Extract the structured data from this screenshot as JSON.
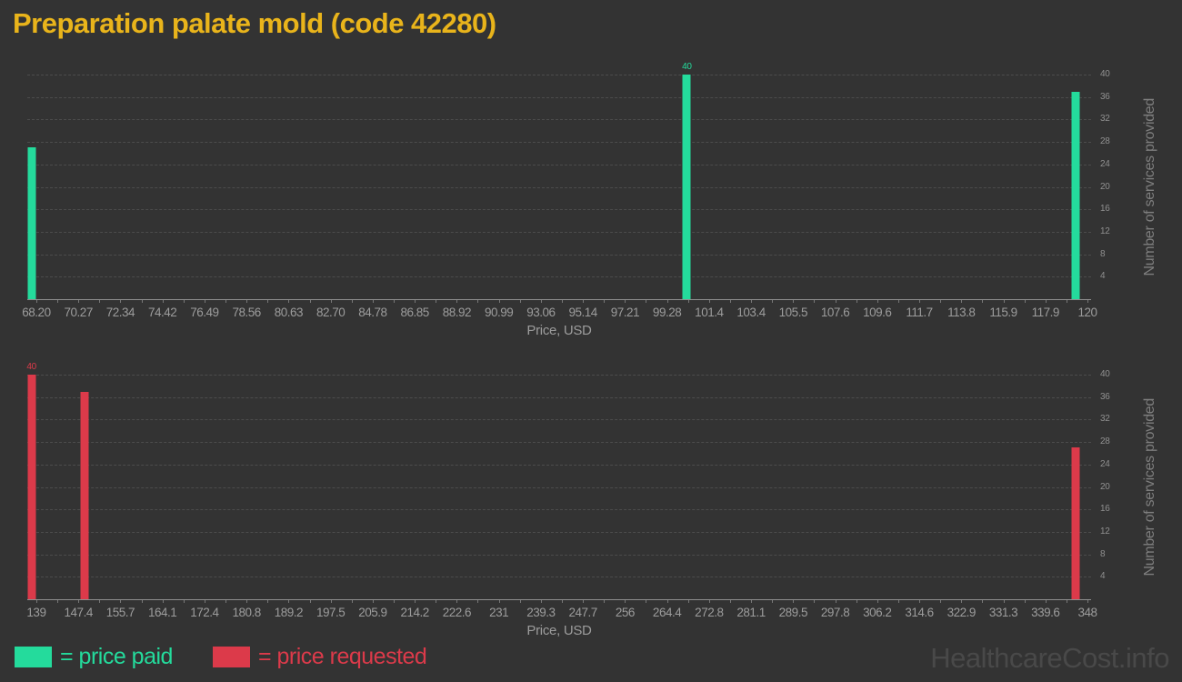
{
  "title": "Preparation palate mold (code 42280)",
  "watermark": "HealthcareCost.info",
  "legend": {
    "paid_label": "= price paid",
    "requested_label": "= price requested"
  },
  "colors": {
    "background": "#333333",
    "title": "#e9b41b",
    "paid": "#24db9c",
    "requested": "#dc3a4a",
    "grid": "#4c4c4c",
    "axis_line": "#8f8f8f",
    "x_tick_label": "#9c9c9c",
    "y_tick_label": "#909090",
    "y_title": "#7e7e7e",
    "watermark": "#494949"
  },
  "chart_data": [
    {
      "type": "bar",
      "series": "price paid",
      "title": "Preparation palate mold (code 42280)",
      "xlabel": "Price, USD",
      "ylabel": "Number of services provided",
      "ylim": [
        0,
        40
      ],
      "grid": "horizontal-dashed",
      "legend_position": "bottom-left",
      "y_ticks": [
        40,
        36,
        32,
        28,
        24,
        20,
        16,
        12,
        8,
        4
      ],
      "x_range": [
        68.2,
        120
      ],
      "x_tick_labels": [
        "68.20",
        "70.27",
        "72.34",
        "74.42",
        "76.49",
        "78.56",
        "80.63",
        "82.70",
        "84.78",
        "86.85",
        "88.92",
        "90.99",
        "93.06",
        "95.14",
        "97.21",
        "99.28",
        "101.4",
        "103.4",
        "105.5",
        "107.6",
        "109.6",
        "111.7",
        "113.8",
        "115.9",
        "117.9",
        "120"
      ],
      "tick_span": [
        0.0085,
        0.9966
      ],
      "bars": [
        {
          "x": 68.2,
          "count": 27,
          "frac": 0.004
        },
        {
          "x": 100.3,
          "count": 40,
          "frac": 0.62,
          "label": "40"
        },
        {
          "x": 119.4,
          "count": 37,
          "frac": 0.9855
        }
      ],
      "color": "#24db9c"
    },
    {
      "type": "bar",
      "series": "price requested",
      "title": "Preparation palate mold (code 42280)",
      "xlabel": "Price, USD",
      "ylabel": "Number of services provided",
      "ylim": [
        0,
        40
      ],
      "grid": "horizontal-dashed",
      "legend_position": "bottom-left",
      "y_ticks": [
        40,
        36,
        32,
        28,
        24,
        20,
        16,
        12,
        8,
        4
      ],
      "x_range": [
        139,
        348
      ],
      "x_tick_labels": [
        "139",
        "147.4",
        "155.7",
        "164.1",
        "172.4",
        "180.8",
        "189.2",
        "197.5",
        "205.9",
        "214.2",
        "222.6",
        "231",
        "239.3",
        "247.7",
        "256",
        "264.4",
        "272.8",
        "281.1",
        "289.5",
        "297.8",
        "306.2",
        "314.6",
        "322.9",
        "331.3",
        "339.6",
        "348"
      ],
      "tick_span": [
        0.0085,
        0.9966
      ],
      "bars": [
        {
          "x": 139,
          "count": 40,
          "frac": 0.004,
          "label": "40"
        },
        {
          "x": 148.6,
          "count": 37,
          "frac": 0.0538
        },
        {
          "x": 345.7,
          "count": 27,
          "frac": 0.9855
        }
      ],
      "color": "#dc3a4a"
    }
  ]
}
